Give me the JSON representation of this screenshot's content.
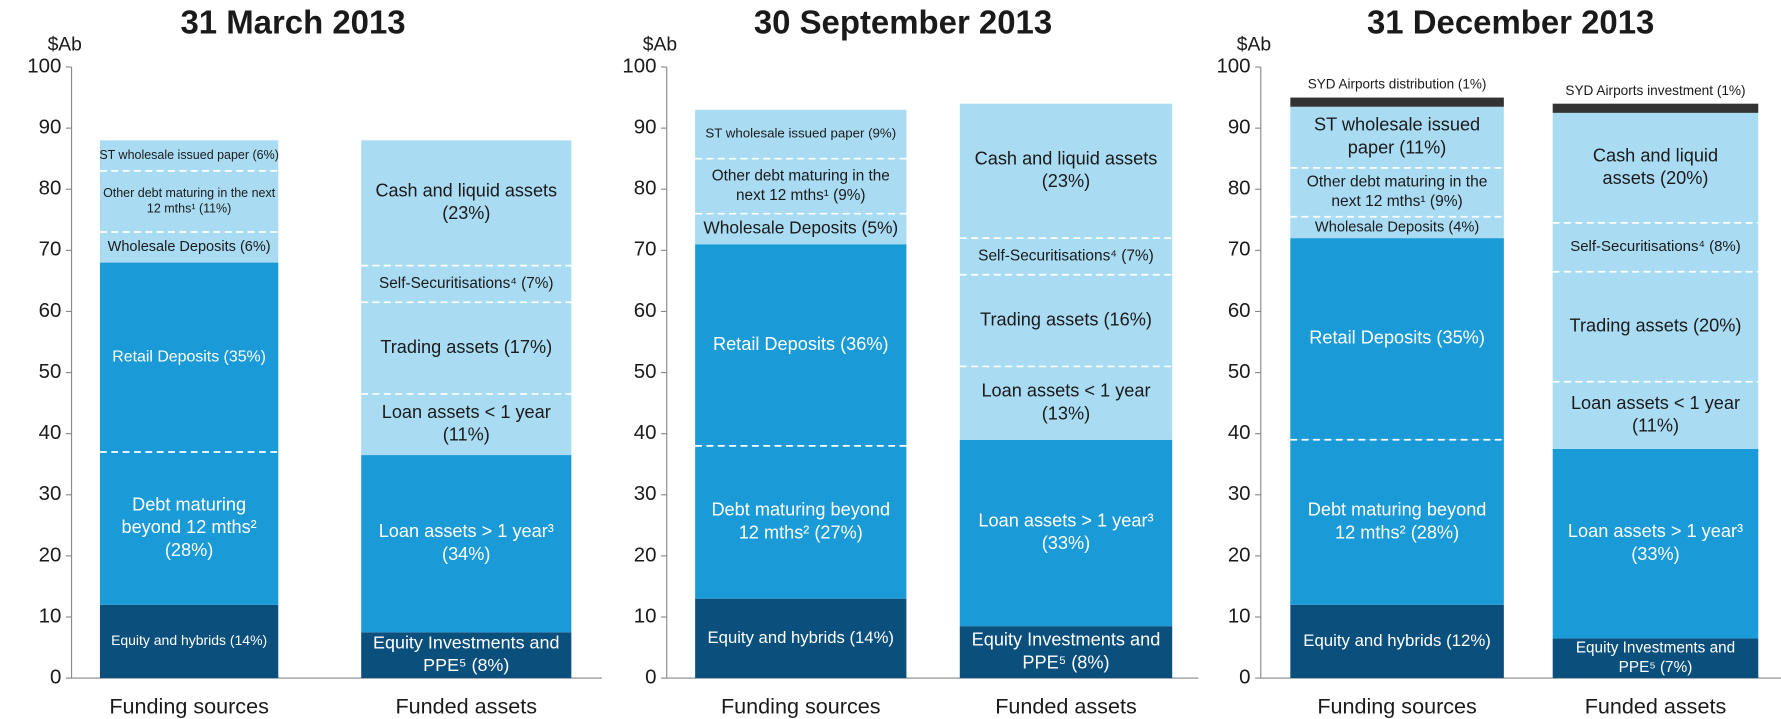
{
  "chart_data": [
    {
      "type": "bar",
      "stacked": true,
      "title": "31 March 2013",
      "y_label": "$Ab",
      "categories": [
        "Funding sources",
        "Funded assets"
      ],
      "ylim": [
        0,
        100
      ],
      "yticks": [
        0,
        10,
        20,
        30,
        40,
        50,
        60,
        70,
        80,
        90,
        100
      ],
      "bars": [
        [
          {
            "label": [
              "Equity and hybrids (14%)"
            ],
            "color": "#0b4f7c",
            "value": 12
          },
          {
            "label": [
              "Debt maturing",
              "beyond 12 mths²",
              "(28%)"
            ],
            "color": "#1a9ad6",
            "value": 25
          },
          {
            "label": [
              "Retail Deposits (35%)"
            ],
            "color": "#1a9ad6",
            "value": 31
          },
          {
            "label": [
              "Wholesale Deposits (6%)"
            ],
            "color": "#a9dcf3",
            "value": 5
          },
          {
            "label": [
              "Other debt maturing in the next",
              "12 mths¹ (11%)"
            ],
            "color": "#a9dcf3",
            "value": 10
          },
          {
            "label": [
              "ST wholesale issued paper (6%)"
            ],
            "color": "#a9dcf3",
            "value": 5
          }
        ],
        [
          {
            "label": [
              "Equity Investments and",
              "PPE⁵ (8%)"
            ],
            "color": "#0b4f7c",
            "value": 7.5
          },
          {
            "label": [
              "Loan assets > 1 year³",
              "(34%)"
            ],
            "color": "#1a9ad6",
            "value": 29
          },
          {
            "label": [
              "Loan assets < 1 year",
              "(11%)"
            ],
            "color": "#a9dcf3",
            "value": 10
          },
          {
            "label": [
              "Trading assets (17%)"
            ],
            "color": "#a9dcf3",
            "value": 15
          },
          {
            "label": [
              "Self-Securitisations⁴ (7%)"
            ],
            "color": "#a9dcf3",
            "value": 6
          },
          {
            "label": [
              "Cash and liquid assets",
              "(23%)"
            ],
            "color": "#a9dcf3",
            "value": 20.5
          }
        ]
      ]
    },
    {
      "type": "bar",
      "stacked": true,
      "title": "30 September 2013",
      "y_label": "$Ab",
      "categories": [
        "Funding sources",
        "Funded assets"
      ],
      "ylim": [
        0,
        100
      ],
      "yticks": [
        0,
        10,
        20,
        30,
        40,
        50,
        60,
        70,
        80,
        90,
        100
      ],
      "bars": [
        [
          {
            "label": [
              "Equity and hybrids (14%)"
            ],
            "color": "#0b4f7c",
            "value": 13
          },
          {
            "label": [
              "Debt maturing beyond",
              "12 mths² (27%)"
            ],
            "color": "#1a9ad6",
            "value": 25
          },
          {
            "label": [
              "Retail Deposits (36%)"
            ],
            "color": "#1a9ad6",
            "value": 33
          },
          {
            "label": [
              "Wholesale Deposits (5%)"
            ],
            "color": "#a9dcf3",
            "value": 5
          },
          {
            "label": [
              "Other debt maturing in the",
              "next 12 mths¹ (9%)"
            ],
            "color": "#a9dcf3",
            "value": 9
          },
          {
            "label": [
              "ST wholesale issued paper (9%)"
            ],
            "color": "#a9dcf3",
            "value": 8
          }
        ],
        [
          {
            "label": [
              "Equity Investments and",
              "PPE⁵ (8%)"
            ],
            "color": "#0b4f7c",
            "value": 8.5
          },
          {
            "label": [
              "Loan assets > 1 year³",
              "(33%)"
            ],
            "color": "#1a9ad6",
            "value": 30.5
          },
          {
            "label": [
              "Loan assets < 1 year",
              "(13%)"
            ],
            "color": "#a9dcf3",
            "value": 12
          },
          {
            "label": [
              "Trading assets (16%)"
            ],
            "color": "#a9dcf3",
            "value": 15
          },
          {
            "label": [
              "Self-Securitisations⁴ (7%)"
            ],
            "color": "#a9dcf3",
            "value": 6
          },
          {
            "label": [
              "Cash and liquid assets",
              "(23%)"
            ],
            "color": "#a9dcf3",
            "value": 22
          }
        ]
      ]
    },
    {
      "type": "bar",
      "stacked": true,
      "title": "31 December 2013",
      "y_label": "$Ab",
      "categories": [
        "Funding sources",
        "Funded assets"
      ],
      "ylim": [
        0,
        100
      ],
      "yticks": [
        0,
        10,
        20,
        30,
        40,
        50,
        60,
        70,
        80,
        90,
        100
      ],
      "bars": [
        [
          {
            "label": [
              "Equity and hybrids (12%)"
            ],
            "color": "#0b4f7c",
            "value": 12
          },
          {
            "label": [
              "Debt maturing beyond",
              "12 mths² (28%)"
            ],
            "color": "#1a9ad6",
            "value": 27
          },
          {
            "label": [
              "Retail Deposits (35%)"
            ],
            "color": "#1a9ad6",
            "value": 33
          },
          {
            "label": [
              "Wholesale Deposits (4%)"
            ],
            "color": "#a9dcf3",
            "value": 3.5
          },
          {
            "label": [
              "Other debt maturing in the",
              "next 12 mths¹ (9%)"
            ],
            "color": "#a9dcf3",
            "value": 8
          },
          {
            "label": [
              "ST wholesale issued",
              "paper (11%)"
            ],
            "color": "#a9dcf3",
            "value": 10
          },
          {
            "label": [
              "SYD Airports distribution (1%)"
            ],
            "color": "#333333",
            "value": 1.5
          }
        ],
        [
          {
            "label": [
              "Equity Investments and",
              "PPE⁵ (7%)"
            ],
            "color": "#0b4f7c",
            "value": 6.5
          },
          {
            "label": [
              "Loan assets > 1 year³",
              "(33%)"
            ],
            "color": "#1a9ad6",
            "value": 31
          },
          {
            "label": [
              "Loan assets < 1 year",
              "(11%)"
            ],
            "color": "#a9dcf3",
            "value": 11
          },
          {
            "label": [
              "Trading assets (20%)"
            ],
            "color": "#a9dcf3",
            "value": 18
          },
          {
            "label": [
              "Self-Securitisations⁴ (8%)"
            ],
            "color": "#a9dcf3",
            "value": 8
          },
          {
            "label": [
              "Cash and liquid",
              "assets (20%)"
            ],
            "color": "#a9dcf3",
            "value": 18
          },
          {
            "label": [
              "SYD Airports investment (1%)"
            ],
            "color": "#333333",
            "value": 1.5
          }
        ]
      ]
    }
  ]
}
